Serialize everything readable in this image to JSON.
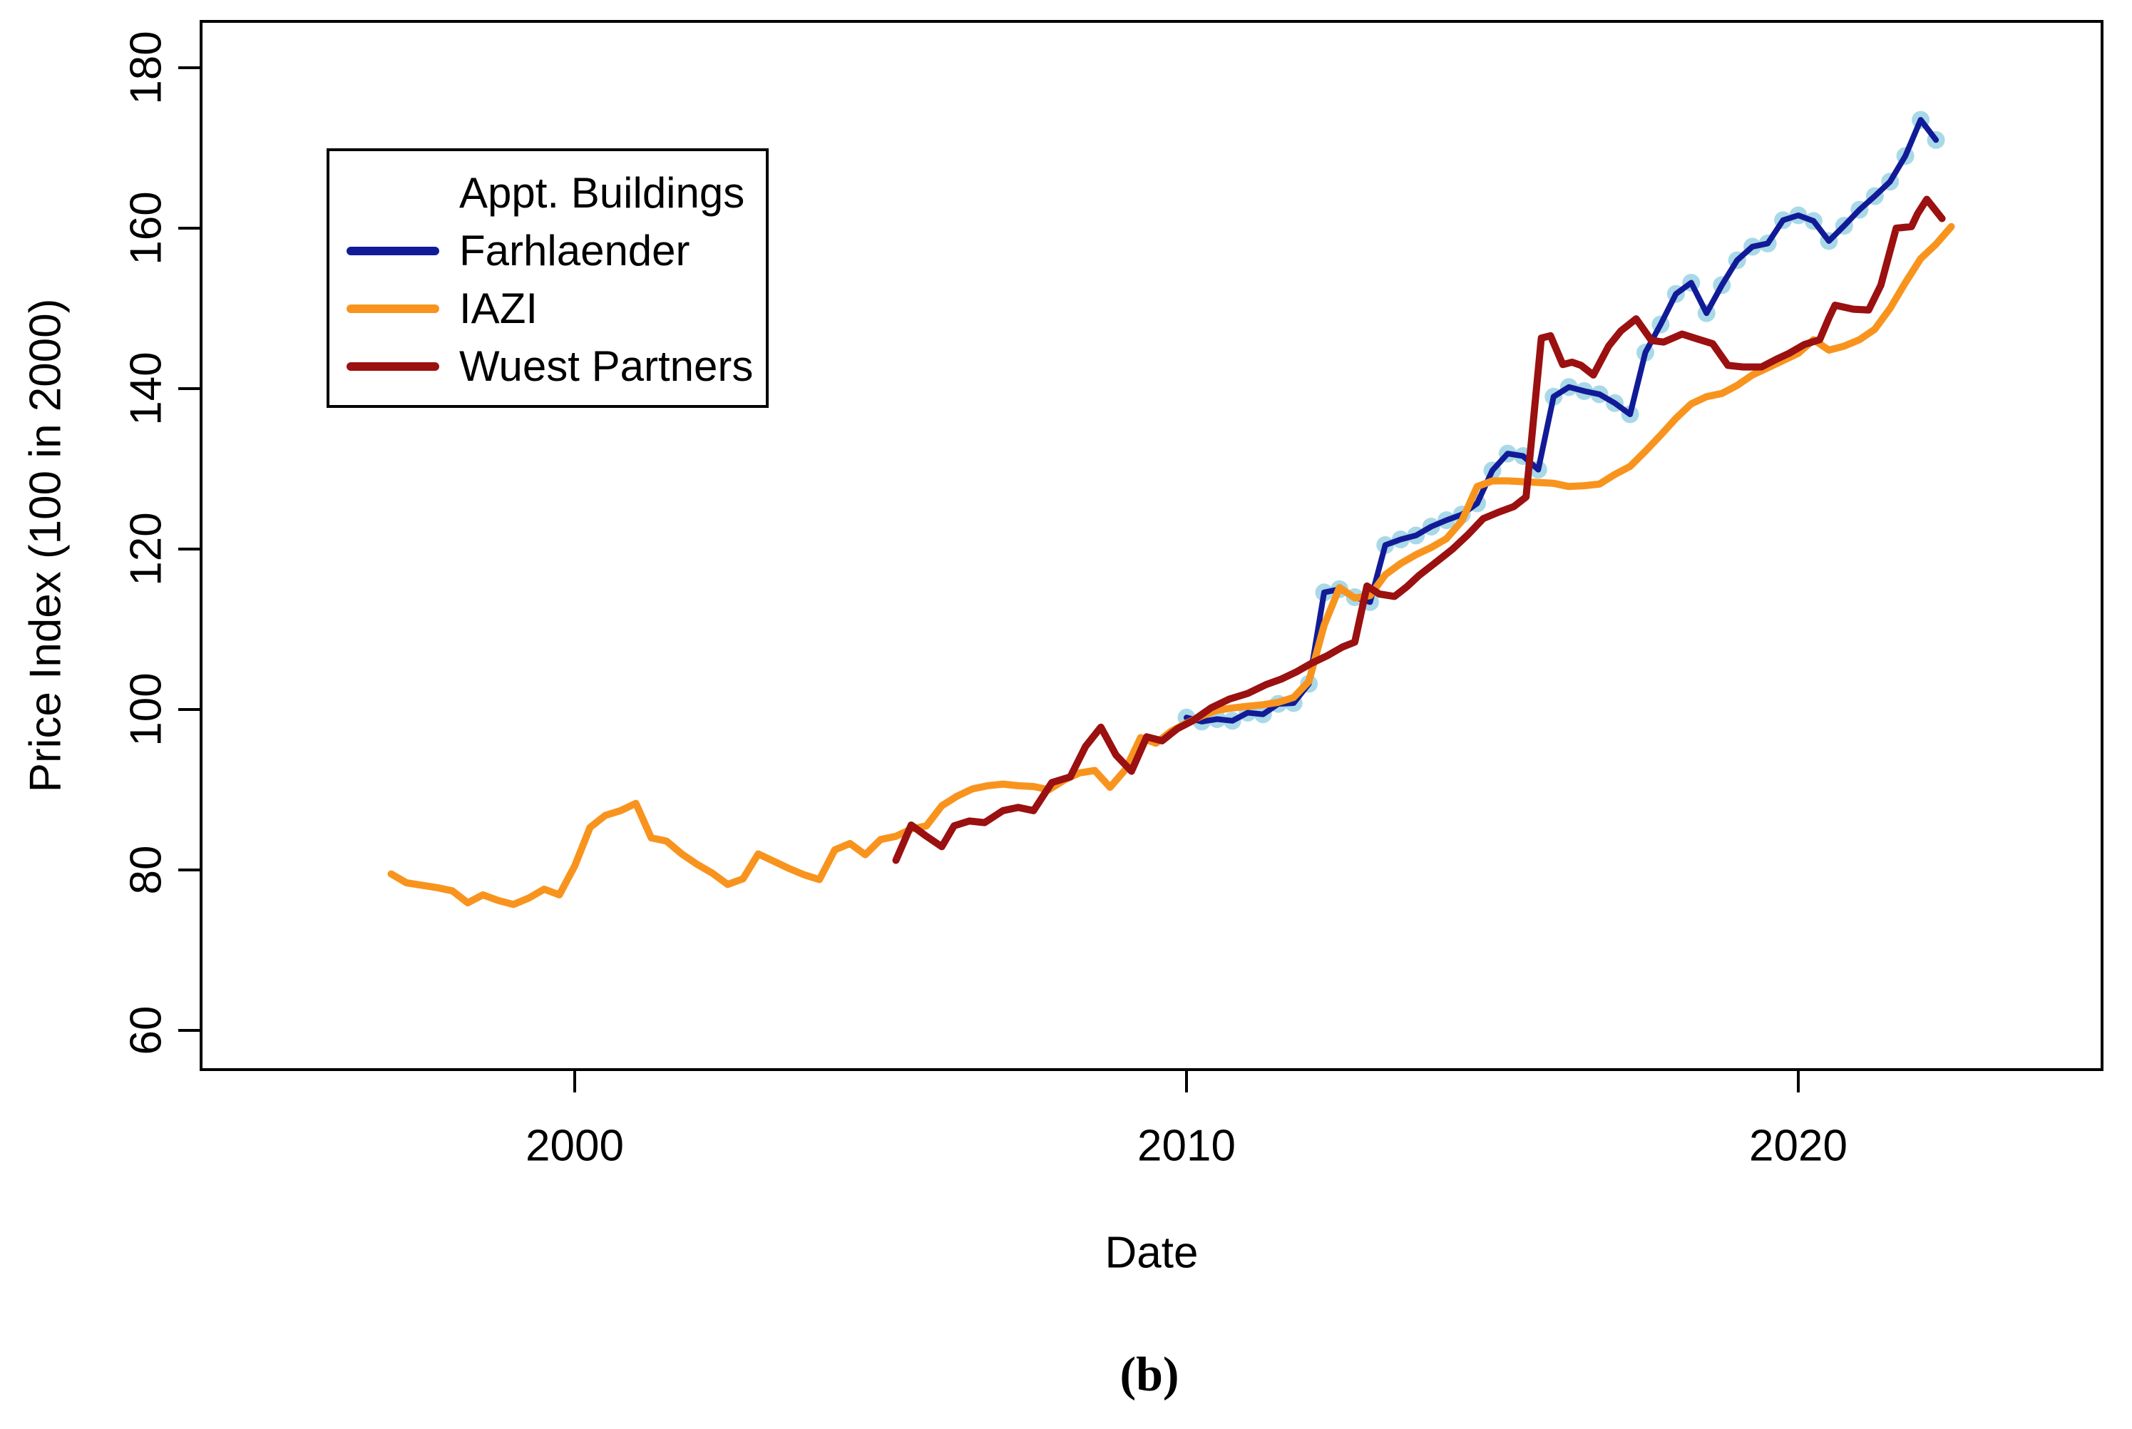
{
  "caption": "(b)",
  "chart_data": {
    "type": "line",
    "title": "",
    "xlabel": "Date",
    "ylabel": "Price Index (100 in 2000)",
    "xlim": [
      1993.9,
      2025.0
    ],
    "ylim": [
      55.1,
      185.8
    ],
    "x_ticks": [
      "2000",
      "2010",
      "2020"
    ],
    "x_tick_years": [
      2000,
      2010,
      2020
    ],
    "y_ticks": [
      "60",
      "80",
      "100",
      "120",
      "140",
      "160",
      "180"
    ],
    "y_tick_values": [
      60,
      80,
      100,
      120,
      140,
      160,
      180
    ],
    "grid": "off",
    "legend": {
      "title": "Appt. Buildings",
      "position": "top-left"
    },
    "marker_color": "#A9D9E8",
    "series": [
      {
        "name": "Farhlaender",
        "color": "#121B97",
        "marker": "circle",
        "points": [
          [
            2010.0,
            99.0
          ],
          [
            2010.25,
            98.5
          ],
          [
            2010.5,
            98.8
          ],
          [
            2010.75,
            98.6
          ],
          [
            2011.0,
            99.6
          ],
          [
            2011.25,
            99.4
          ],
          [
            2011.5,
            100.7
          ],
          [
            2011.75,
            100.8
          ],
          [
            2012.0,
            103.2
          ],
          [
            2012.25,
            114.6
          ],
          [
            2012.5,
            115.0
          ],
          [
            2012.75,
            114.0
          ],
          [
            2013.0,
            113.4
          ],
          [
            2013.25,
            120.5
          ],
          [
            2013.5,
            121.2
          ],
          [
            2013.75,
            121.7
          ],
          [
            2014.0,
            122.8
          ],
          [
            2014.25,
            123.6
          ],
          [
            2014.5,
            124.3
          ],
          [
            2014.75,
            125.7
          ],
          [
            2015.0,
            129.8
          ],
          [
            2015.25,
            131.9
          ],
          [
            2015.5,
            131.6
          ],
          [
            2015.75,
            129.9
          ],
          [
            2016.0,
            139.0
          ],
          [
            2016.25,
            140.2
          ],
          [
            2016.5,
            139.7
          ],
          [
            2016.75,
            139.3
          ],
          [
            2017.0,
            138.2
          ],
          [
            2017.25,
            136.8
          ],
          [
            2017.5,
            144.5
          ],
          [
            2017.75,
            148.0
          ],
          [
            2018.0,
            151.8
          ],
          [
            2018.25,
            153.2
          ],
          [
            2018.5,
            149.4
          ],
          [
            2018.75,
            152.9
          ],
          [
            2019.0,
            156.0
          ],
          [
            2019.25,
            157.7
          ],
          [
            2019.5,
            158.1
          ],
          [
            2019.75,
            161.0
          ],
          [
            2020.0,
            161.6
          ],
          [
            2020.25,
            160.9
          ],
          [
            2020.5,
            158.4
          ],
          [
            2020.75,
            160.3
          ],
          [
            2021.0,
            162.3
          ],
          [
            2021.25,
            164.0
          ],
          [
            2021.5,
            165.8
          ],
          [
            2021.75,
            169.0
          ],
          [
            2022.0,
            173.5
          ],
          [
            2022.25,
            171.0
          ]
        ]
      },
      {
        "name": "IAZI",
        "color": "#F8941E",
        "marker": "none",
        "points": [
          [
            1997.0,
            79.5
          ],
          [
            1997.25,
            78.4
          ],
          [
            1997.5,
            78.1
          ],
          [
            1997.75,
            77.8
          ],
          [
            1998.0,
            77.4
          ],
          [
            1998.25,
            75.9
          ],
          [
            1998.5,
            76.9
          ],
          [
            1998.75,
            76.2
          ],
          [
            1999.0,
            75.7
          ],
          [
            1999.25,
            76.5
          ],
          [
            1999.5,
            77.6
          ],
          [
            1999.75,
            76.9
          ],
          [
            2000.0,
            80.5
          ],
          [
            2000.25,
            85.3
          ],
          [
            2000.5,
            86.8
          ],
          [
            2000.75,
            87.4
          ],
          [
            2001.0,
            88.3
          ],
          [
            2001.25,
            84.0
          ],
          [
            2001.5,
            83.6
          ],
          [
            2001.75,
            82.0
          ],
          [
            2002.0,
            80.7
          ],
          [
            2002.25,
            79.6
          ],
          [
            2002.5,
            78.2
          ],
          [
            2002.75,
            78.9
          ],
          [
            2003.0,
            82.0
          ],
          [
            2003.25,
            81.1
          ],
          [
            2003.5,
            80.2
          ],
          [
            2003.75,
            79.4
          ],
          [
            2004.0,
            78.8
          ],
          [
            2004.25,
            82.5
          ],
          [
            2004.5,
            83.3
          ],
          [
            2004.75,
            81.9
          ],
          [
            2005.0,
            83.8
          ],
          [
            2005.25,
            84.2
          ],
          [
            2005.5,
            85.1
          ],
          [
            2005.75,
            85.5
          ],
          [
            2006.0,
            88.0
          ],
          [
            2006.25,
            89.2
          ],
          [
            2006.5,
            90.1
          ],
          [
            2006.75,
            90.5
          ],
          [
            2007.0,
            90.7
          ],
          [
            2007.25,
            90.5
          ],
          [
            2007.5,
            90.4
          ],
          [
            2007.75,
            90.0
          ],
          [
            2008.0,
            91.2
          ],
          [
            2008.25,
            92.1
          ],
          [
            2008.5,
            92.4
          ],
          [
            2008.75,
            90.3
          ],
          [
            2009.0,
            92.5
          ],
          [
            2009.25,
            96.5
          ],
          [
            2009.5,
            95.8
          ],
          [
            2009.75,
            97.3
          ],
          [
            2010.0,
            98.3
          ],
          [
            2010.25,
            99.2
          ],
          [
            2010.5,
            99.9
          ],
          [
            2010.75,
            100.2
          ],
          [
            2011.0,
            100.4
          ],
          [
            2011.25,
            100.6
          ],
          [
            2011.5,
            100.9
          ],
          [
            2011.75,
            101.5
          ],
          [
            2012.0,
            103.5
          ],
          [
            2012.25,
            110.5
          ],
          [
            2012.5,
            115.2
          ],
          [
            2012.75,
            113.9
          ],
          [
            2013.0,
            114.2
          ],
          [
            2013.25,
            116.8
          ],
          [
            2013.5,
            118.2
          ],
          [
            2013.75,
            119.3
          ],
          [
            2014.0,
            120.2
          ],
          [
            2014.25,
            121.3
          ],
          [
            2014.5,
            123.5
          ],
          [
            2014.75,
            127.8
          ],
          [
            2015.0,
            128.5
          ],
          [
            2015.25,
            128.5
          ],
          [
            2015.5,
            128.4
          ],
          [
            2015.75,
            128.3
          ],
          [
            2016.0,
            128.2
          ],
          [
            2016.25,
            127.8
          ],
          [
            2016.5,
            127.9
          ],
          [
            2016.75,
            128.1
          ],
          [
            2017.0,
            129.3
          ],
          [
            2017.25,
            130.3
          ],
          [
            2017.5,
            132.2
          ],
          [
            2017.75,
            134.2
          ],
          [
            2018.0,
            136.3
          ],
          [
            2018.25,
            138.1
          ],
          [
            2018.5,
            139.0
          ],
          [
            2018.75,
            139.4
          ],
          [
            2019.0,
            140.4
          ],
          [
            2019.25,
            141.7
          ],
          [
            2019.5,
            142.6
          ],
          [
            2019.75,
            143.5
          ],
          [
            2020.0,
            144.4
          ],
          [
            2020.25,
            146.1
          ],
          [
            2020.5,
            144.8
          ],
          [
            2020.75,
            145.3
          ],
          [
            2021.0,
            146.1
          ],
          [
            2021.25,
            147.4
          ],
          [
            2021.5,
            150.0
          ],
          [
            2021.75,
            153.2
          ],
          [
            2022.0,
            156.2
          ],
          [
            2022.25,
            158.0
          ],
          [
            2022.5,
            160.2
          ]
        ]
      },
      {
        "name": "Wuest Partners",
        "color": "#9B1010",
        "marker": "none",
        "points": [
          [
            2005.25,
            81.2
          ],
          [
            2005.5,
            85.6
          ],
          [
            2005.75,
            84.2
          ],
          [
            2006.0,
            82.9
          ],
          [
            2006.2,
            85.5
          ],
          [
            2006.45,
            86.1
          ],
          [
            2006.7,
            85.9
          ],
          [
            2007.0,
            87.4
          ],
          [
            2007.25,
            87.8
          ],
          [
            2007.5,
            87.4
          ],
          [
            2007.8,
            90.9
          ],
          [
            2008.1,
            91.6
          ],
          [
            2008.35,
            95.4
          ],
          [
            2008.6,
            97.8
          ],
          [
            2008.85,
            94.3
          ],
          [
            2009.1,
            92.3
          ],
          [
            2009.35,
            96.6
          ],
          [
            2009.6,
            96.1
          ],
          [
            2009.85,
            97.6
          ],
          [
            2010.1,
            98.6
          ],
          [
            2010.4,
            100.2
          ],
          [
            2010.7,
            101.3
          ],
          [
            2011.0,
            102.0
          ],
          [
            2011.3,
            103.1
          ],
          [
            2011.55,
            103.8
          ],
          [
            2011.8,
            104.7
          ],
          [
            2012.05,
            105.8
          ],
          [
            2012.3,
            106.7
          ],
          [
            2012.55,
            107.8
          ],
          [
            2012.75,
            108.4
          ],
          [
            2012.95,
            115.4
          ],
          [
            2013.15,
            114.4
          ],
          [
            2013.4,
            114.1
          ],
          [
            2013.6,
            115.3
          ],
          [
            2013.8,
            116.7
          ],
          [
            2014.05,
            118.2
          ],
          [
            2014.35,
            120.0
          ],
          [
            2014.6,
            121.8
          ],
          [
            2014.85,
            123.8
          ],
          [
            2015.1,
            124.6
          ],
          [
            2015.35,
            125.3
          ],
          [
            2015.55,
            126.5
          ],
          [
            2015.8,
            146.3
          ],
          [
            2015.95,
            146.6
          ],
          [
            2016.15,
            143.0
          ],
          [
            2016.3,
            143.3
          ],
          [
            2016.45,
            142.9
          ],
          [
            2016.65,
            141.7
          ],
          [
            2016.9,
            145.3
          ],
          [
            2017.1,
            147.2
          ],
          [
            2017.35,
            148.7
          ],
          [
            2017.6,
            146.0
          ],
          [
            2017.8,
            145.8
          ],
          [
            2018.1,
            146.8
          ],
          [
            2018.35,
            146.2
          ],
          [
            2018.6,
            145.6
          ],
          [
            2018.85,
            142.9
          ],
          [
            2019.1,
            142.7
          ],
          [
            2019.4,
            142.7
          ],
          [
            2019.65,
            143.7
          ],
          [
            2019.85,
            144.4
          ],
          [
            2020.1,
            145.5
          ],
          [
            2020.35,
            146.1
          ],
          [
            2020.5,
            148.8
          ],
          [
            2020.6,
            150.4
          ],
          [
            2020.9,
            149.9
          ],
          [
            2021.15,
            149.8
          ],
          [
            2021.35,
            152.9
          ],
          [
            2021.6,
            160.0
          ],
          [
            2021.85,
            160.2
          ],
          [
            2021.95,
            161.8
          ],
          [
            2022.1,
            163.6
          ],
          [
            2022.35,
            161.2
          ]
        ]
      }
    ]
  }
}
